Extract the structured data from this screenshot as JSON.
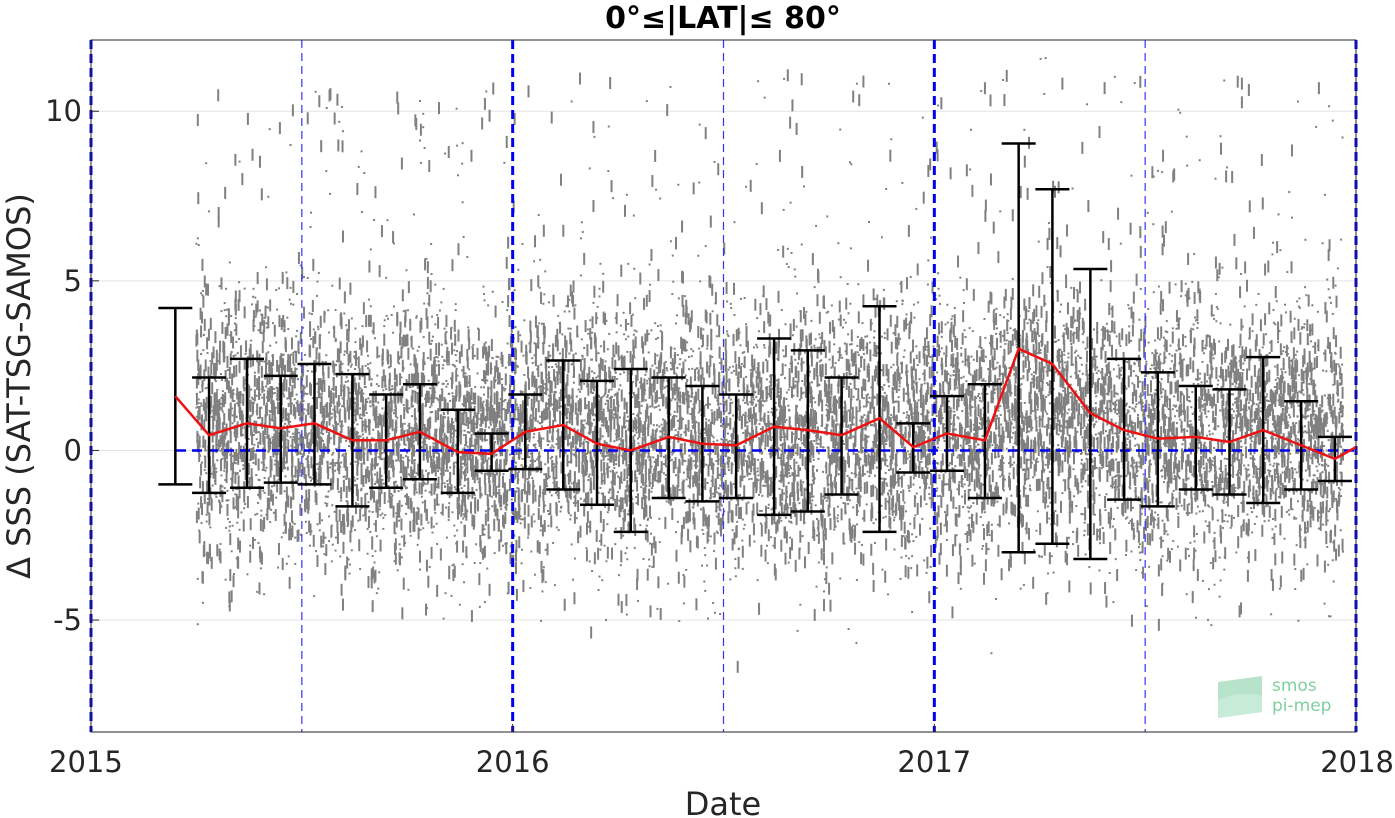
{
  "chart_data": {
    "type": "scatter",
    "title": "0°≤|LAT|≤ 80°",
    "xlabel": "Date",
    "ylabel": "Δ SSS (SAT-TSG-SAMOS)",
    "xlim": [
      2015.0,
      2018.0
    ],
    "ylim": [
      -8.3,
      12.1
    ],
    "x_ticks": [
      {
        "value": 2015,
        "label": "2015"
      },
      {
        "value": 2016,
        "label": "2016"
      },
      {
        "value": 2017,
        "label": "2017"
      },
      {
        "value": 2018,
        "label": "2018"
      }
    ],
    "y_ticks": [
      {
        "value": -5,
        "label": "-5"
      },
      {
        "value": 0,
        "label": "0"
      },
      {
        "value": 5,
        "label": "5"
      },
      {
        "value": 10,
        "label": "10"
      }
    ],
    "grid": "horizontal",
    "reference_line": {
      "y": 0,
      "style": "dashed",
      "color": "#0000ee"
    },
    "year_lines": [
      2015.0,
      2016.0,
      2017.0,
      2018.0
    ],
    "half_year_lines": [
      2015.5,
      2016.5,
      2017.5
    ],
    "scatter": {
      "color": "#808080",
      "x_range": [
        2015.25,
        2017.97
      ],
      "typical_spread": [
        -3.5,
        5.5
      ],
      "max_spike": 12.1,
      "min_spike": -8.3
    },
    "series": [
      {
        "style": "errorbar",
        "color": "#000000",
        "x": [
          2015.2,
          2015.28,
          2015.37,
          2015.45,
          2015.53,
          2015.62,
          2015.7,
          2015.78,
          2015.87,
          2015.95,
          2016.03,
          2016.12,
          2016.2,
          2016.28,
          2016.37,
          2016.45,
          2016.53,
          2016.62,
          2016.7,
          2016.78,
          2016.87,
          2016.95,
          2017.03,
          2017.12,
          2017.2,
          2017.28,
          2017.37,
          2017.45,
          2017.53,
          2017.62,
          2017.7,
          2017.78,
          2017.87,
          2017.95
        ],
        "low": [
          -1.0,
          -1.25,
          -1.1,
          -0.95,
          -1.0,
          -1.65,
          -1.1,
          -0.85,
          -1.25,
          -0.6,
          -0.55,
          -1.15,
          -1.6,
          -2.4,
          -1.4,
          -1.5,
          -1.4,
          -1.9,
          -1.8,
          -1.3,
          -2.4,
          -0.65,
          -0.6,
          -1.4,
          -3.0,
          -2.75,
          -3.2,
          -1.45,
          -1.65,
          -1.15,
          -1.3,
          -1.55,
          -1.15,
          -0.9
        ],
        "high": [
          4.2,
          2.15,
          2.7,
          2.2,
          2.55,
          2.25,
          1.65,
          1.95,
          1.2,
          0.5,
          1.65,
          2.65,
          2.05,
          2.4,
          2.15,
          1.9,
          1.65,
          3.3,
          2.95,
          2.15,
          4.25,
          0.8,
          1.6,
          1.95,
          9.05,
          7.7,
          5.35,
          2.7,
          2.3,
          1.9,
          1.8,
          2.75,
          1.45,
          0.4
        ]
      },
      {
        "style": "line",
        "color": "#ee1111",
        "x": [
          2015.2,
          2015.28,
          2015.37,
          2015.45,
          2015.53,
          2015.62,
          2015.7,
          2015.78,
          2015.87,
          2015.95,
          2016.03,
          2016.12,
          2016.2,
          2016.28,
          2016.37,
          2016.45,
          2016.53,
          2016.62,
          2016.7,
          2016.78,
          2016.87,
          2016.95,
          2017.03,
          2017.12,
          2017.2,
          2017.28,
          2017.37,
          2017.45,
          2017.53,
          2017.62,
          2017.7,
          2017.78,
          2017.87,
          2017.95,
          2018.0
        ],
        "values": [
          1.6,
          0.45,
          0.8,
          0.65,
          0.8,
          0.3,
          0.3,
          0.55,
          -0.05,
          -0.1,
          0.55,
          0.75,
          0.2,
          0.0,
          0.4,
          0.2,
          0.15,
          0.7,
          0.6,
          0.45,
          0.95,
          0.1,
          0.5,
          0.3,
          3.0,
          2.55,
          1.1,
          0.6,
          0.35,
          0.4,
          0.25,
          0.6,
          0.15,
          -0.25,
          0.1
        ]
      }
    ]
  },
  "logo": {
    "line1": "smos",
    "line2": "pi-mep"
  }
}
